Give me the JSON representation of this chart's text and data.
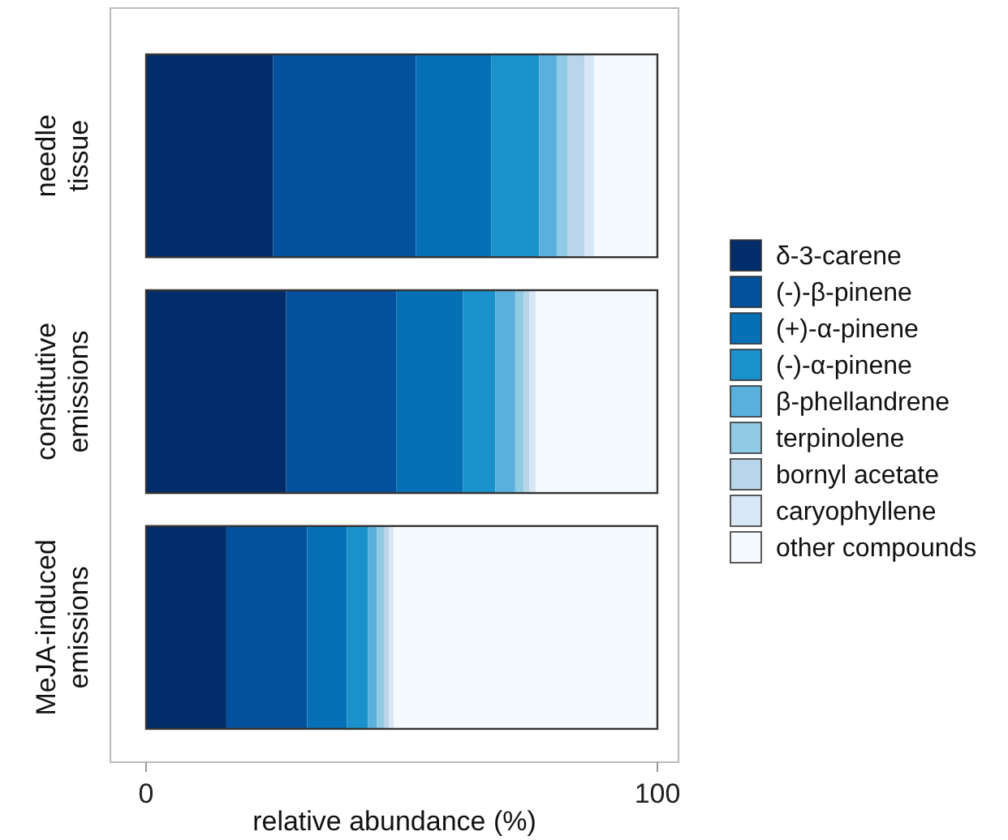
{
  "chart_data": {
    "type": "bar",
    "orientation": "horizontal",
    "stacked": true,
    "xlabel": "relative abundance (%)",
    "categories": [
      "needle tissue",
      "constitutive emissions",
      "MeJA-induced emissions"
    ],
    "xlim": [
      0,
      100
    ],
    "xticks": [
      0,
      100
    ],
    "legend": "right",
    "series": [
      {
        "name": "δ-3-carene",
        "color": "#012d6b",
        "values": [
          24.8,
          27.4,
          15.7
        ]
      },
      {
        "name": "(-)-β-pinene",
        "color": "#03519c",
        "values": [
          28.0,
          21.6,
          15.8
        ]
      },
      {
        "name": "(+)-α-pinene",
        "color": "#0570b6",
        "values": [
          14.7,
          13.0,
          7.8
        ]
      },
      {
        "name": "(-)-α-pinene",
        "color": "#1a91cb",
        "values": [
          9.4,
          6.3,
          4.1
        ]
      },
      {
        "name": "β-phellandrene",
        "color": "#5ab0dc",
        "values": [
          3.5,
          3.9,
          1.7
        ]
      },
      {
        "name": "terpinolene",
        "color": "#8fcbe4",
        "values": [
          2.0,
          1.6,
          1.4
        ]
      },
      {
        "name": "bornyl acetate",
        "color": "#b9d5ea",
        "values": [
          3.4,
          1.2,
          1.0
        ]
      },
      {
        "name": "caryophyllene",
        "color": "#d8e7f5",
        "values": [
          1.9,
          1.2,
          0.9
        ]
      },
      {
        "name": "other compounds",
        "color": "#f5fafe",
        "values": [
          12.3,
          23.8,
          51.6
        ]
      }
    ]
  }
}
